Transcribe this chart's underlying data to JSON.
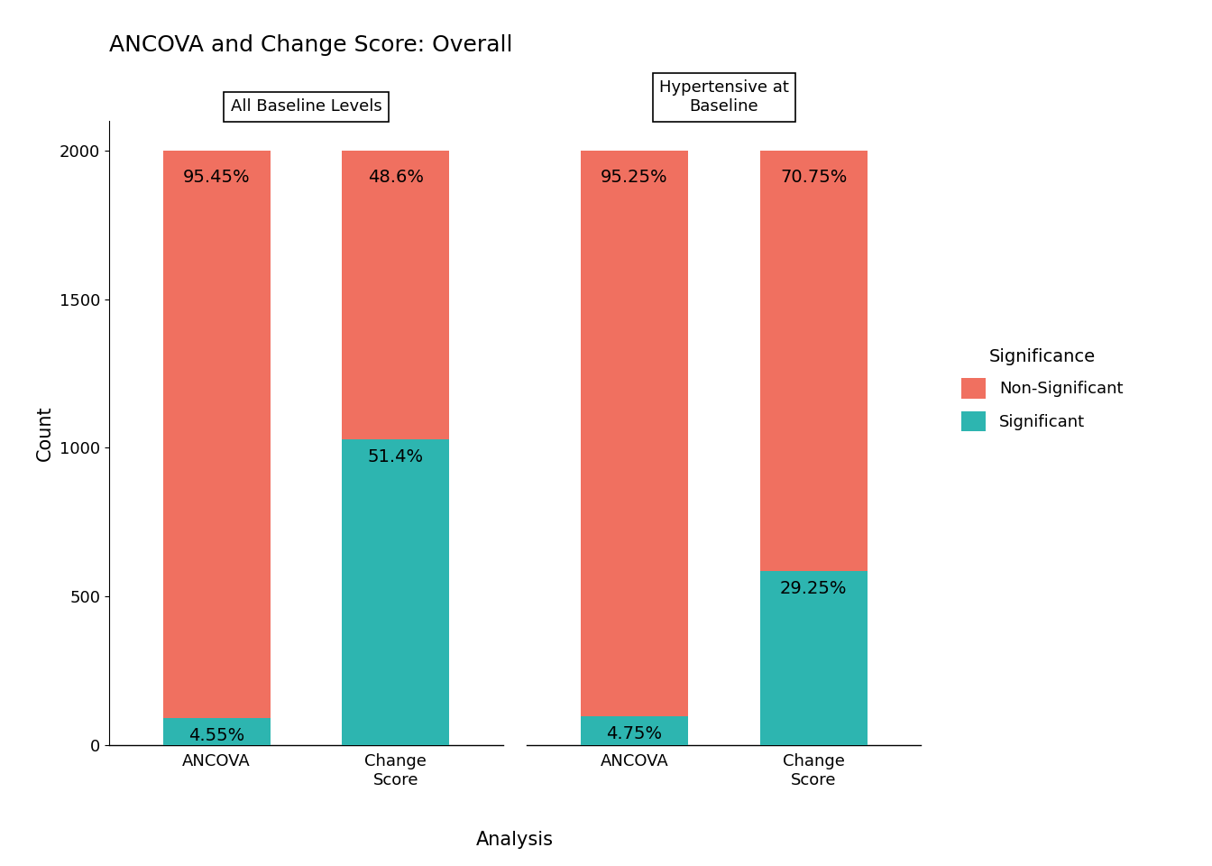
{
  "title": "ANCOVA and Change Score: Overall",
  "xlabel": "Analysis",
  "ylabel": "Count",
  "facets": [
    {
      "label": "All Baseline Levels",
      "bars": [
        {
          "x_label": "ANCOVA",
          "significant_pct": 4.55,
          "non_significant_pct": 95.45,
          "total": 2000
        },
        {
          "x_label": "Change\nScore",
          "significant_pct": 51.4,
          "non_significant_pct": 48.6,
          "total": 2000
        }
      ]
    },
    {
      "label": "Hypertensive at\nBaseline",
      "bars": [
        {
          "x_label": "ANCOVA",
          "significant_pct": 4.75,
          "non_significant_pct": 95.25,
          "total": 2000
        },
        {
          "x_label": "Change\nScore",
          "significant_pct": 29.25,
          "non_significant_pct": 70.75,
          "total": 2000
        }
      ]
    }
  ],
  "color_significant": "#2db5b0",
  "color_non_significant": "#f07060",
  "ylim": [
    0,
    2100
  ],
  "yticks": [
    0,
    500,
    1000,
    1500,
    2000
  ],
  "bar_width": 0.6,
  "legend_title": "Significance",
  "legend_labels": [
    "Non-Significant",
    "Significant"
  ],
  "legend_colors": [
    "#f07060",
    "#2db5b0"
  ],
  "background_color": "#ffffff",
  "facet_panel_color": "#ffffff",
  "title_fontsize": 18,
  "axis_label_fontsize": 15,
  "tick_fontsize": 13,
  "legend_fontsize": 13,
  "annotation_fontsize": 14,
  "facet_label_fontsize": 13
}
